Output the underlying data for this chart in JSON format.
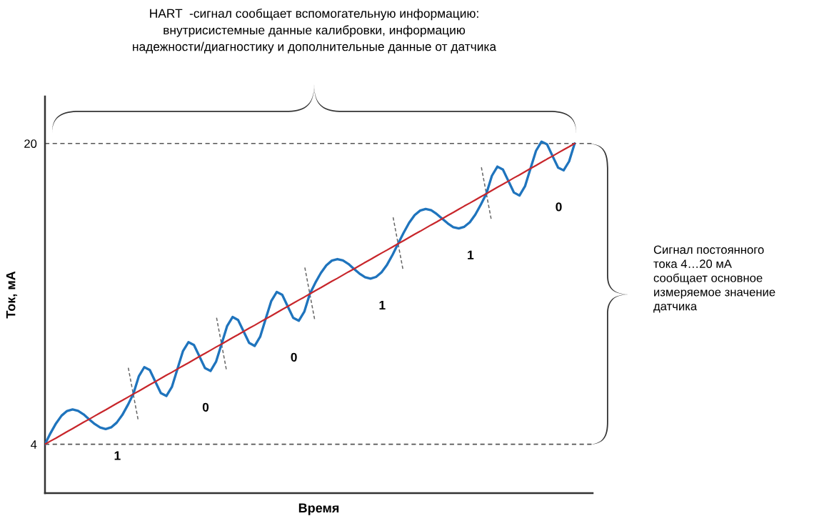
{
  "chart_data": {
    "type": "line",
    "title": "HART  -сигнал сообщает вспомогательную информацию:\nвнутрисистемные данные калибровки, информацию\nнадежности/диагностику и дополнительные данные от датчика",
    "xlabel": "Время",
    "ylabel": "Ток, мА",
    "categories": [
      null,
      null,
      null,
      null,
      null,
      null,
      null,
      null,
      null,
      null,
      null,
      null,
      null,
      null,
      null,
      null,
      null,
      null,
      null,
      null,
      null,
      null,
      null,
      null,
      null,
      null,
      null,
      null,
      null,
      null,
      null,
      null,
      null,
      null,
      null,
      null,
      null,
      null,
      null,
      null,
      null,
      null,
      null,
      null,
      null,
      null,
      null,
      null,
      null,
      null,
      null,
      null,
      null,
      null,
      null,
      null,
      null,
      null,
      null,
      null,
      null,
      null,
      null,
      null,
      null,
      null,
      null,
      null,
      null,
      null,
      null,
      null,
      null,
      null,
      null,
      null,
      null,
      null,
      null,
      null,
      null,
      null,
      null,
      null,
      null,
      null,
      null,
      null,
      null,
      null,
      null,
      null,
      null,
      null,
      null,
      null,
      null
    ],
    "series": [
      {
        "color": "#1f74bd",
        "values": [
          4.0,
          4.59,
          5.11,
          5.52,
          5.77,
          5.85,
          5.78,
          5.59,
          5.33,
          5.08,
          4.89,
          4.81,
          4.9,
          5.15,
          5.55,
          6.08,
          6.67,
          7.61,
          8.1,
          7.95,
          7.33,
          6.72,
          6.57,
          7.05,
          8.0,
          8.95,
          9.43,
          9.28,
          8.67,
          8.05,
          7.9,
          8.39,
          9.33,
          10.28,
          10.77,
          10.61,
          10.0,
          9.39,
          9.23,
          9.72,
          10.67,
          11.61,
          12.1,
          11.95,
          11.33,
          10.72,
          10.57,
          11.05,
          12.0,
          12.59,
          13.11,
          13.52,
          13.77,
          13.85,
          13.78,
          13.59,
          13.33,
          13.08,
          12.89,
          12.81,
          12.9,
          13.15,
          13.55,
          14.08,
          14.67,
          15.25,
          15.78,
          16.19,
          16.43,
          16.52,
          16.45,
          16.25,
          16.0,
          15.75,
          15.55,
          15.48,
          15.57,
          15.81,
          16.22,
          16.75,
          17.33,
          18.28,
          18.77,
          18.61,
          18.0,
          17.39,
          17.23,
          17.72,
          18.67,
          19.61,
          20.1,
          19.95,
          19.33,
          18.72,
          18.57,
          19.05,
          20.0
        ]
      },
      {
        "color": "#c8262b",
        "values": [
          4.0,
          4.17,
          4.33,
          4.5,
          4.67,
          4.83,
          5.0,
          5.17,
          5.33,
          5.5,
          5.67,
          5.83,
          6.0,
          6.17,
          6.33,
          6.5,
          6.67,
          6.83,
          7.0,
          7.17,
          7.33,
          7.5,
          7.67,
          7.83,
          8.0,
          8.17,
          8.33,
          8.5,
          8.67,
          8.83,
          9.0,
          9.17,
          9.33,
          9.5,
          9.67,
          9.83,
          10.0,
          10.17,
          10.33,
          10.5,
          10.67,
          10.83,
          11.0,
          11.17,
          11.33,
          11.5,
          11.67,
          11.83,
          12.0,
          12.17,
          12.33,
          12.5,
          12.67,
          12.83,
          13.0,
          13.17,
          13.33,
          13.5,
          13.67,
          13.83,
          14.0,
          14.17,
          14.33,
          14.5,
          14.67,
          14.83,
          15.0,
          15.17,
          15.33,
          15.5,
          15.67,
          15.83,
          16.0,
          16.17,
          16.33,
          16.5,
          16.67,
          16.83,
          17.0,
          17.17,
          17.33,
          17.5,
          17.67,
          17.83,
          18.0,
          18.17,
          18.33,
          18.5,
          18.67,
          18.83,
          19.0,
          19.17,
          19.33,
          19.5,
          19.67,
          19.83,
          20.0
        ]
      }
    ],
    "ylim": [
      1.4,
      22.5
    ],
    "yticks": [
      4,
      20
    ],
    "tick_labels": "y",
    "ref_lines": [
      {
        "axis": "y",
        "value": 4,
        "color": "#555555",
        "line_style": "dashed"
      },
      {
        "axis": "y",
        "value": 20,
        "color": "#555555",
        "line_style": "dashed"
      }
    ],
    "annotations": [
      "Сигнал постоянного\nтока 4…20 мА\nсообщает основное\nизмеряемое значение\nдатчика",
      "1",
      "0",
      "0",
      "1",
      "1",
      "0"
    ]
  }
}
